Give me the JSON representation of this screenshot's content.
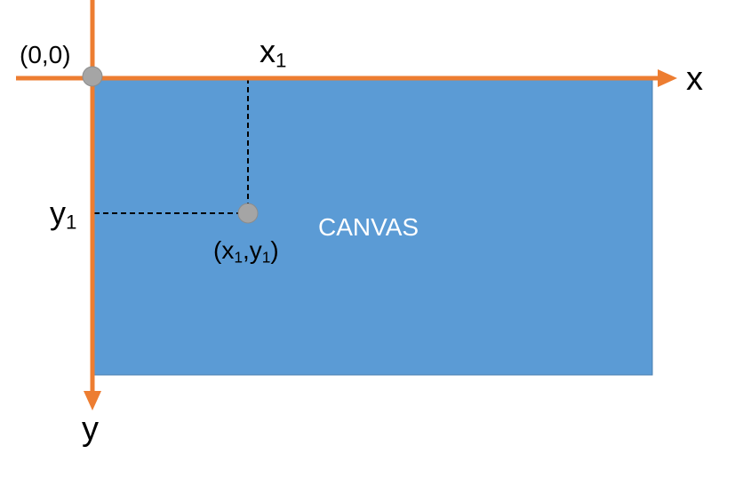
{
  "origin_label": "(0,0)",
  "x_axis_label": "x",
  "y_axis_label": "y",
  "x1_label": {
    "base": "x",
    "sub": "1"
  },
  "y1_label": {
    "base": "y",
    "sub": "1"
  },
  "point_label": {
    "open": "(",
    "x": "x",
    "x_sub": "1",
    "sep": ",",
    "y": "y",
    "y_sub": "1",
    "close": ")"
  },
  "canvas_label": "CANVAS",
  "colors": {
    "axis": "#ED7D31",
    "canvas_fill": "#5B9BD5",
    "canvas_border": "#4A7FB0",
    "point": "#A5A5A5",
    "guide": "#000000",
    "canvas_text": "#FFFFFF"
  }
}
